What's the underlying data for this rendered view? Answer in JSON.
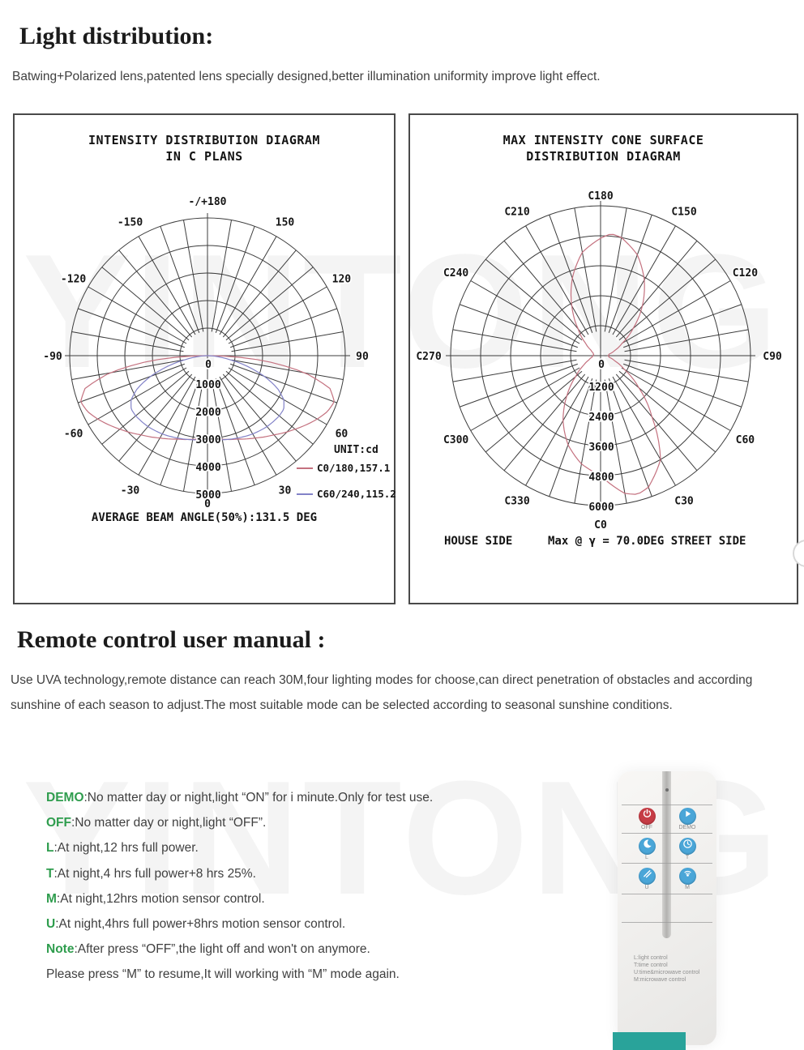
{
  "page": {
    "watermark": "YINTONG",
    "section1_title": "Light distribution:",
    "section1_text": "Batwing+Polarized lens,patented lens specially designed,better illumination uniformity improve light effect.",
    "section2_title": "Remote control user manual :",
    "section2_text": "Use UVA technology,remote distance can reach 30M,four lighting modes for choose,can direct penetration of obstacles and according sunshine of each season to adjust.The most suitable mode can be selected according to seasonal sunshine conditions."
  },
  "modes": [
    {
      "label": "DEMO",
      "desc": ":No matter day or night,light “ON” for i minute.Only for test use."
    },
    {
      "label": "OFF",
      "desc": ":No matter day or night,light “OFF”."
    },
    {
      "label": "L",
      "desc": ":At night,12 hrs full power."
    },
    {
      "label": "T",
      "desc": ":At night,4 hrs full power+8 hrs 25%."
    },
    {
      "label": "M",
      "desc": ":At night,12hrs motion sensor control."
    },
    {
      "label": "U",
      "desc": ":At night,4hrs full power+8hrs motion sensor control."
    },
    {
      "label": "Note",
      "desc": ":After press “OFF”,the light off and won't on anymore."
    },
    {
      "label": "",
      "desc": "Please press “M” to resume,It will working with “M” mode again."
    }
  ],
  "remote": {
    "buttons": [
      {
        "label": "OFF",
        "color": "#c63c45",
        "icon": "power-icon"
      },
      {
        "label": "DEMO",
        "color": "#4aa6d8",
        "icon": "play-icon"
      },
      {
        "label": "L",
        "color": "#4aa6d8",
        "icon": "moon-icon"
      },
      {
        "label": "T",
        "color": "#4aa6d8",
        "icon": "clock-icon"
      },
      {
        "label": "U",
        "color": "#4aa6d8",
        "icon": "wave-icon"
      },
      {
        "label": "M",
        "color": "#4aa6d8",
        "icon": "radar-icon"
      }
    ],
    "legend": [
      "L:light control",
      "T:time control",
      "U:time&microwave control",
      "M:microwave control"
    ]
  },
  "chart_data": [
    {
      "type": "polar",
      "title": "INTENSITY DISTRIBUTION DIAGRAM\nIN C PLANS",
      "unit_label": "UNIT:cd",
      "footer": "AVERAGE BEAM ANGLE(50%):131.5 DEG",
      "ring_step": 1000,
      "ring_labels": [
        "0",
        "1000",
        "2000",
        "3000",
        "4000",
        "5000"
      ],
      "angle_labels": [
        {
          "a": 180,
          "t": "-/+180"
        },
        {
          "a": -150,
          "t": "-150"
        },
        {
          "a": 150,
          "t": "150"
        },
        {
          "a": -120,
          "t": "-120"
        },
        {
          "a": 120,
          "t": "120"
        },
        {
          "a": -90,
          "t": "-90"
        },
        {
          "a": 90,
          "t": "90"
        },
        {
          "a": -60,
          "t": "-60"
        },
        {
          "a": 60,
          "t": "60"
        },
        {
          "a": -30,
          "t": "-30"
        },
        {
          "a": 30,
          "t": "30"
        },
        {
          "a": 0,
          "t": "0",
          "r": 182
        }
      ],
      "series": [
        {
          "name": "C0/180,157.1",
          "color": "#c4717f",
          "mirror": true,
          "anchors": [
            [
              0,
              3000
            ],
            [
              10,
              3080
            ],
            [
              20,
              3220
            ],
            [
              30,
              3450
            ],
            [
              40,
              3750
            ],
            [
              50,
              4150
            ],
            [
              60,
              4600
            ],
            [
              65,
              4800
            ],
            [
              70,
              4900
            ],
            [
              75,
              4600
            ],
            [
              80,
              3600
            ],
            [
              85,
              2000
            ],
            [
              90,
              0
            ]
          ]
        },
        {
          "name": "C60/240,115.2",
          "color": "#8282c8",
          "mirror": true,
          "anchors": [
            [
              0,
              3050
            ],
            [
              10,
              3100
            ],
            [
              20,
              3180
            ],
            [
              30,
              3280
            ],
            [
              40,
              3360
            ],
            [
              50,
              3400
            ],
            [
              55,
              3380
            ],
            [
              60,
              3200
            ],
            [
              65,
              2800
            ],
            [
              70,
              2200
            ],
            [
              75,
              1500
            ],
            [
              80,
              800
            ],
            [
              85,
              300
            ],
            [
              90,
              0
            ]
          ]
        }
      ]
    },
    {
      "type": "polar",
      "title": "MAX INTENSITY CONE SURFACE\nDISTRIBUTION DIAGRAM",
      "footer_left": "HOUSE SIDE",
      "footer_right": "Max @ γ = 70.0DEG STREET SIDE",
      "ring_step": 1200,
      "ring_labels": [
        "0",
        "1200",
        "2400",
        "3600",
        "4800",
        "6000"
      ],
      "angle_labels": [
        {
          "a": 0,
          "t": "C0",
          "r": 208
        },
        {
          "a": 30,
          "t": "C30"
        },
        {
          "a": 60,
          "t": "C60"
        },
        {
          "a": 90,
          "t": "C90",
          "r": 212
        },
        {
          "a": 120,
          "t": "C120"
        },
        {
          "a": 150,
          "t": "C150"
        },
        {
          "a": 180,
          "t": "C180",
          "r": 198
        },
        {
          "a": 210,
          "t": "C210"
        },
        {
          "a": 240,
          "t": "C240"
        },
        {
          "a": 270,
          "t": "C270",
          "r": 212
        },
        {
          "a": 300,
          "t": "C300"
        },
        {
          "a": 330,
          "t": "C330"
        }
      ],
      "series": [
        {
          "name": "max intensity cone",
          "color": "#c4717f",
          "closed": true,
          "anchors": [
            [
              0,
              4800
            ],
            [
              10,
              5600
            ],
            [
              15,
              5750
            ],
            [
              20,
              5600
            ],
            [
              30,
              4800
            ],
            [
              40,
              3200
            ],
            [
              50,
              2000
            ],
            [
              60,
              1100
            ],
            [
              70,
              600
            ],
            [
              80,
              350
            ],
            [
              90,
              300
            ],
            [
              100,
              350
            ],
            [
              110,
              600
            ],
            [
              120,
              1000
            ],
            [
              130,
              1700
            ],
            [
              140,
              2600
            ],
            [
              150,
              3500
            ],
            [
              160,
              4300
            ],
            [
              170,
              4800
            ],
            [
              175,
              4900
            ],
            [
              180,
              4700
            ],
            [
              190,
              4200
            ],
            [
              200,
              3300
            ],
            [
              210,
              2300
            ],
            [
              220,
              1400
            ],
            [
              230,
              800
            ],
            [
              240,
              450
            ],
            [
              250,
              320
            ],
            [
              260,
              280
            ],
            [
              270,
              300
            ],
            [
              280,
              350
            ],
            [
              290,
              500
            ],
            [
              300,
              800
            ],
            [
              310,
              1300
            ],
            [
              320,
              2100
            ],
            [
              330,
              3000
            ],
            [
              340,
              3800
            ],
            [
              350,
              4400
            ],
            [
              360,
              4800
            ]
          ]
        }
      ]
    }
  ]
}
